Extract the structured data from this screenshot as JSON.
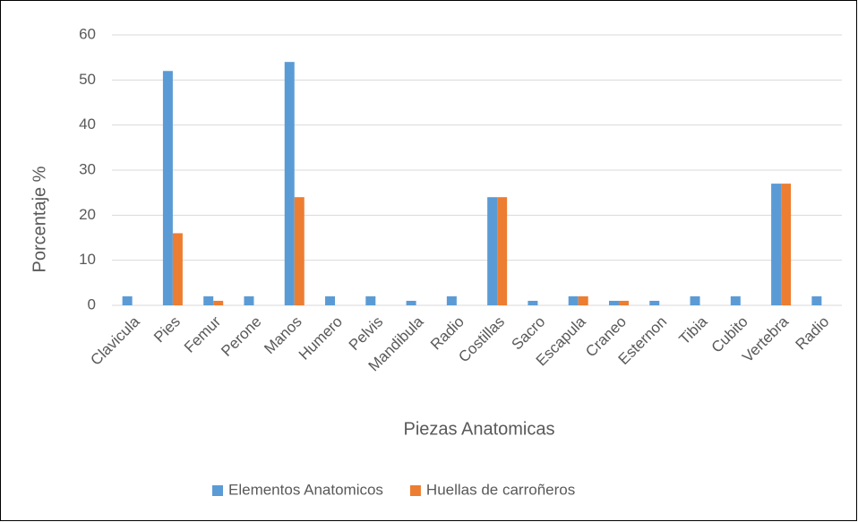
{
  "chart_data": {
    "type": "bar",
    "categories": [
      "Clavicula",
      "Pies",
      "Femur",
      "Perone",
      "Manos",
      "Humero",
      "Pelvis",
      "Mandibula",
      "Radio",
      "Costillas",
      "Sacro",
      "Escapula",
      "Craneo",
      "Esternon",
      "Tibia",
      "Cubito",
      "Vertebra",
      "Radio"
    ],
    "series": [
      {
        "name": "Elementos Anatomicos",
        "color": "#5b9bd5",
        "values": [
          2,
          52,
          2,
          2,
          54,
          2,
          2,
          1,
          2,
          24,
          1,
          2,
          1,
          1,
          2,
          2,
          27,
          2
        ]
      },
      {
        "name": "Huellas de carroñeros",
        "color": "#ed7d31",
        "values": [
          0,
          16,
          1,
          0,
          24,
          0,
          0,
          0,
          0,
          24,
          0,
          2,
          1,
          0,
          0,
          0,
          27,
          0
        ]
      }
    ],
    "ylabel": "Porcentaje %",
    "xlabel": "Piezas Anatomicas",
    "ylim": [
      0,
      60
    ],
    "yticks": [
      0,
      10,
      20,
      30,
      40,
      50,
      60
    ],
    "grid": true,
    "legend": "bottom"
  }
}
